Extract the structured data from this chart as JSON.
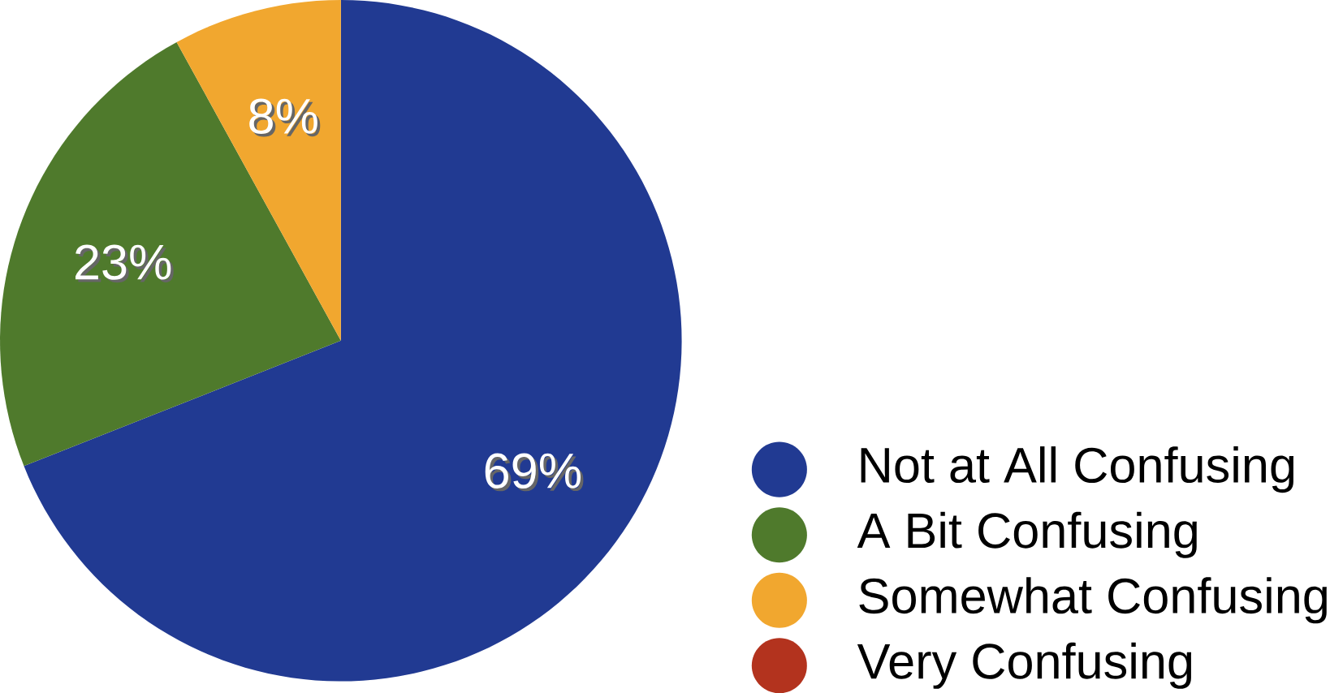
{
  "chart_data": {
    "type": "pie",
    "categories": [
      "Not at All Confusing",
      "A Bit Confusing",
      "Somewhat Confusing",
      "Very Confusing"
    ],
    "values": [
      69,
      23,
      8,
      0
    ],
    "colors": [
      "#213a92",
      "#4f7a2c",
      "#f1a72f",
      "#b3331e"
    ],
    "value_labels": [
      "69%",
      "23%",
      "8%",
      null
    ],
    "legend": "bottom right"
  }
}
